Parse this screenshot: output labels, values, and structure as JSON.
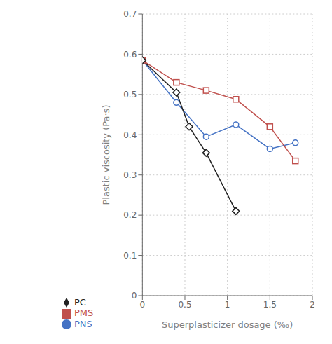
{
  "chart_data": {
    "type": "line",
    "xlabel": "Superplasticizer dosage (‰)",
    "ylabel": "Plastic viscosity (Pa·s)",
    "series": [
      {
        "name": "PNS",
        "color": "#4472C4",
        "marker": "circle",
        "x": [
          0,
          0.4,
          0.75,
          1.1,
          1.5,
          1.8
        ],
        "values": [
          0.585,
          0.48,
          0.395,
          0.425,
          0.365,
          0.38
        ]
      },
      {
        "name": "PMS",
        "color": "#C0504D",
        "marker": "square",
        "x": [
          0,
          0.4,
          0.75,
          1.1,
          1.5,
          1.8
        ],
        "values": [
          0.585,
          0.53,
          0.51,
          0.488,
          0.42,
          0.335
        ]
      },
      {
        "name": "PC",
        "color": "#222222",
        "marker": "diamond",
        "x": [
          0,
          0.4,
          0.55,
          0.75,
          1.1
        ],
        "values": [
          0.585,
          0.505,
          0.42,
          0.355,
          0.21
        ]
      }
    ],
    "xlim": [
      0,
      2.0
    ],
    "ylim": [
      0,
      0.7
    ],
    "xticks": [
      0,
      0.5,
      1,
      1.5,
      2
    ],
    "yticks": [
      0,
      0.1,
      0.2,
      0.3,
      0.4,
      0.5,
      0.6,
      0.7
    ],
    "grid": true,
    "legend": "bottom"
  }
}
